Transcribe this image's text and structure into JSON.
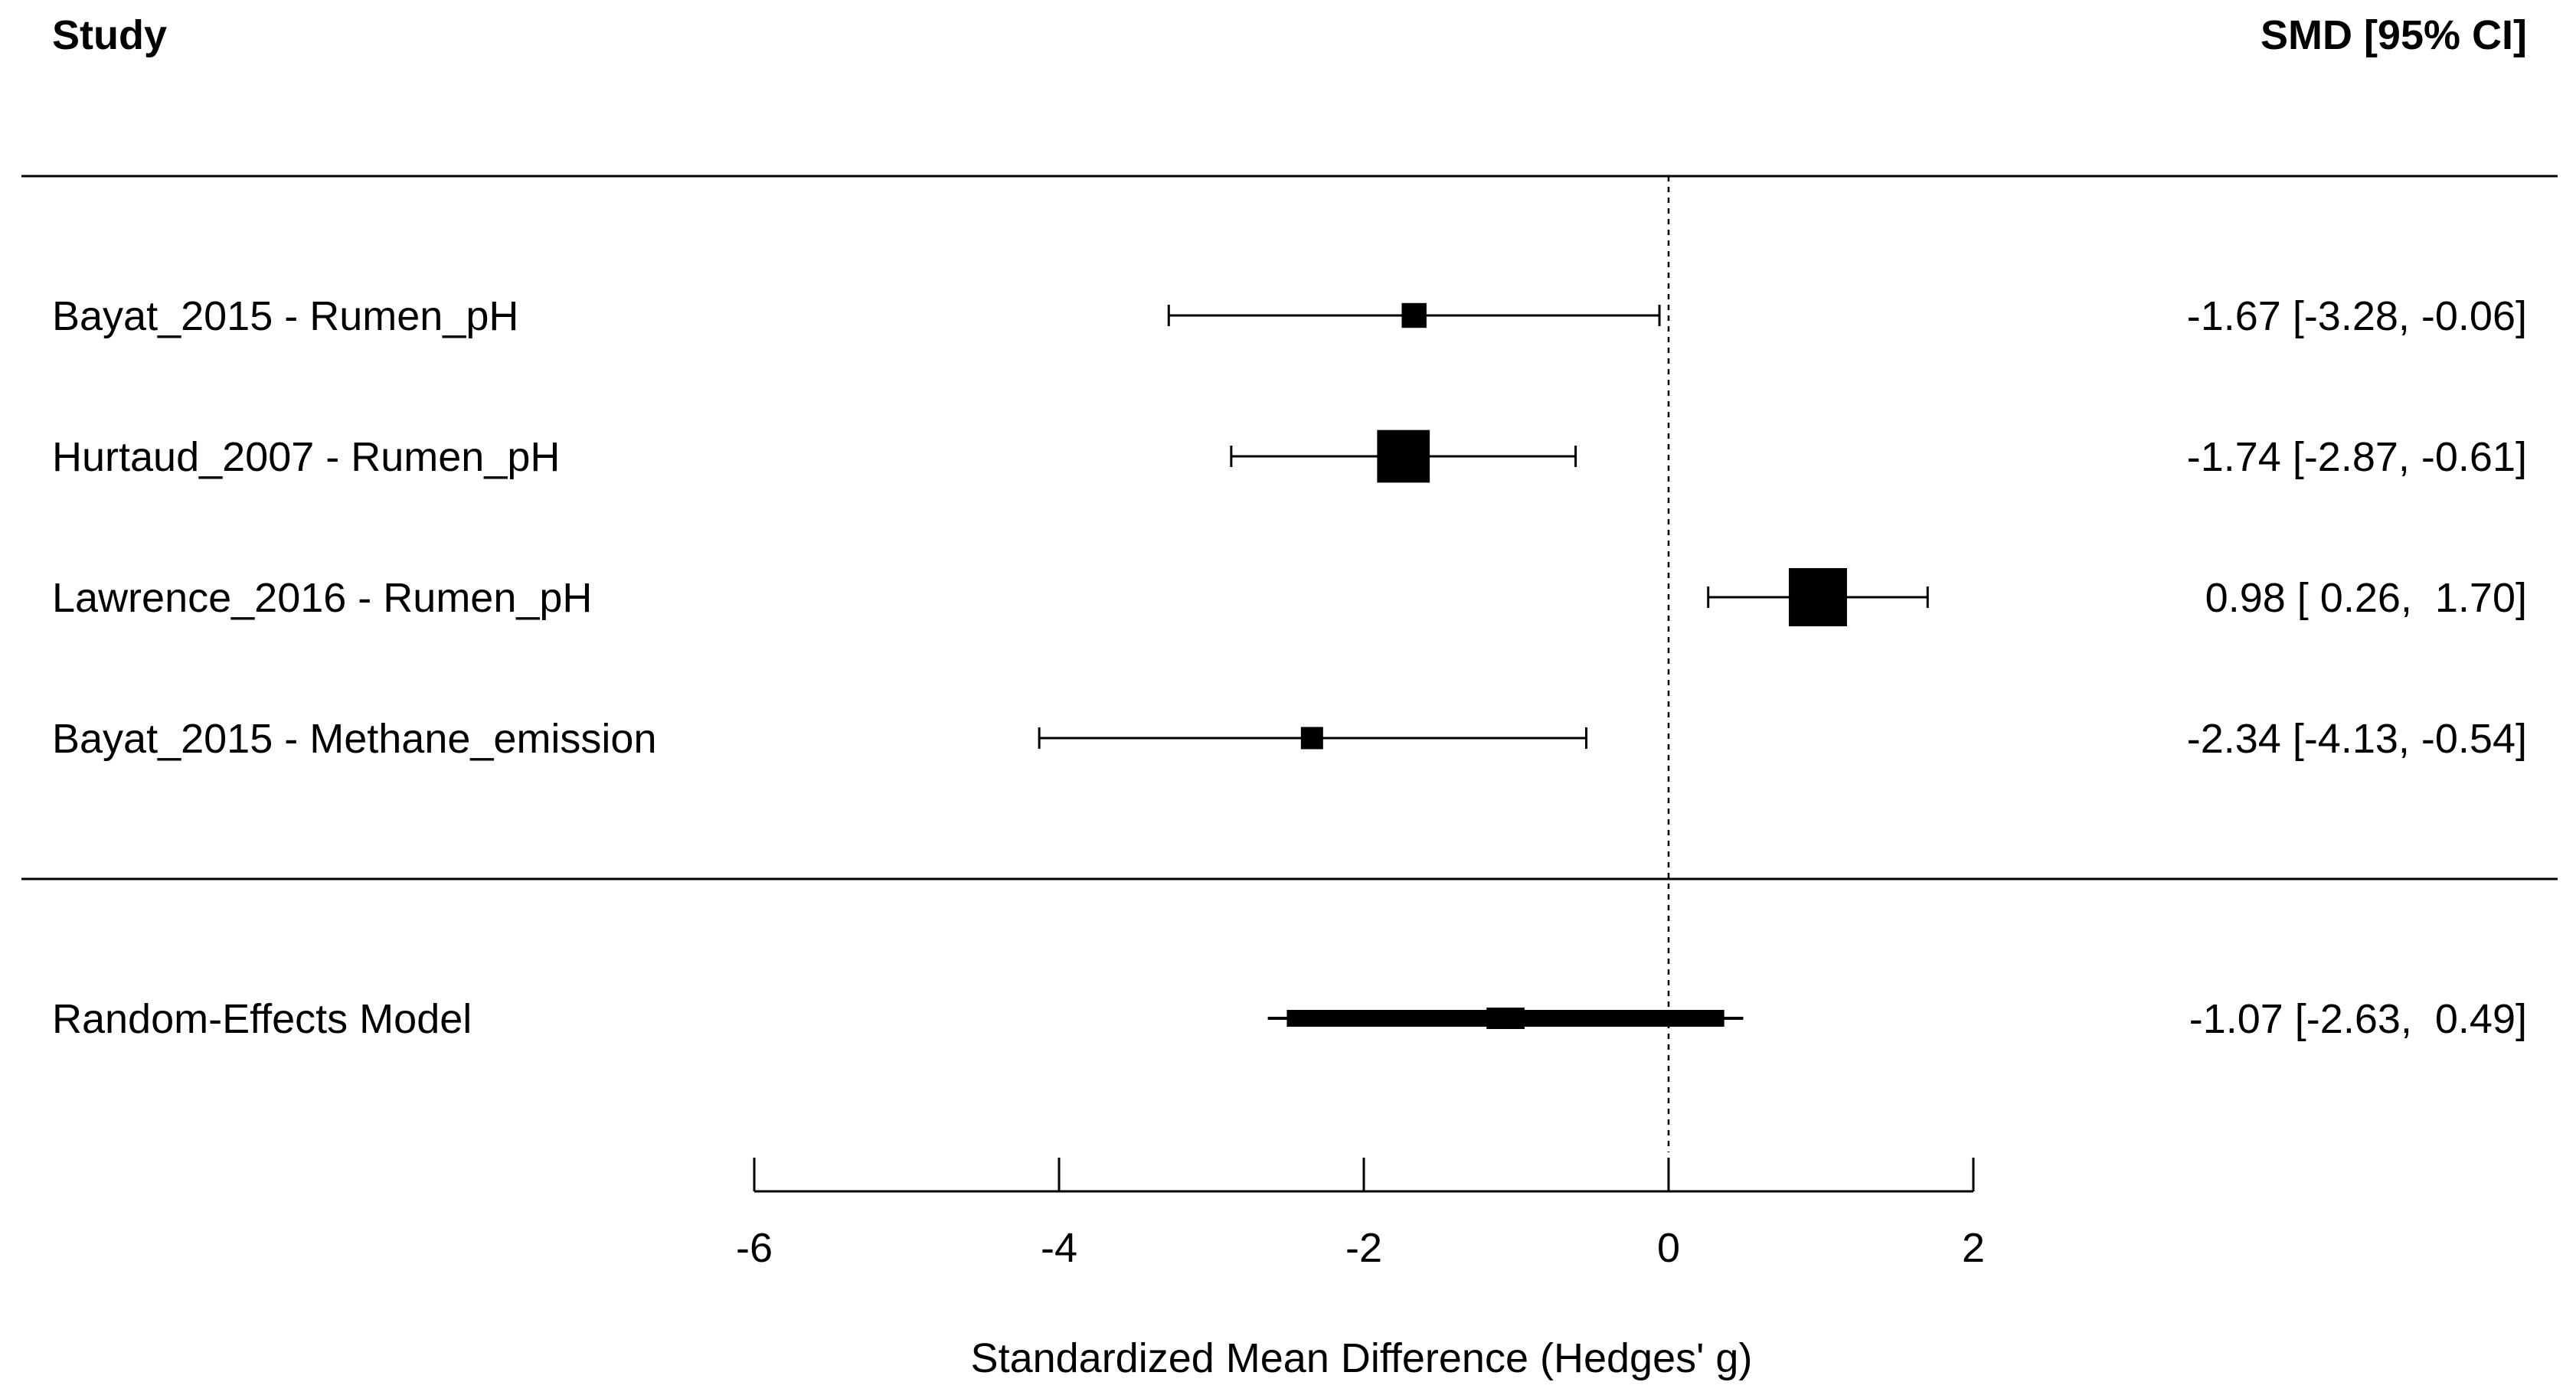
{
  "header": {
    "study_label": "Study",
    "ci_label": "SMD [95% CI]"
  },
  "chart_data": {
    "type": "forest",
    "xlabel": "Standardized Mean Difference (Hedges' g)",
    "xlim": [
      -6,
      2
    ],
    "xticks": [
      -6,
      -4,
      -2,
      0,
      2
    ],
    "reference_line": 0,
    "studies": [
      {
        "label": "Bayat_2015 - Rumen_pH",
        "estimate": -1.67,
        "lower": -3.28,
        "upper": -0.06,
        "ci_text": "-1.67 [-3.28, -0.06]",
        "weight": 1
      },
      {
        "label": "Hurtaud_2007 - Rumen_pH",
        "estimate": -1.74,
        "lower": -2.87,
        "upper": -0.61,
        "ci_text": "-1.74 [-2.87, -0.61]",
        "weight": 4.5
      },
      {
        "label": "Lawrence_2016 - Rumen_pH",
        "estimate": 0.98,
        "lower": 0.26,
        "upper": 1.7,
        "ci_text": "0.98 [ 0.26,  1.70]",
        "weight": 5.5
      },
      {
        "label": "Bayat_2015 - Methane_emission",
        "estimate": -2.34,
        "lower": -4.13,
        "upper": -0.54,
        "ci_text": "-2.34 [-4.13, -0.54]",
        "weight": 0.8
      }
    ],
    "summary": {
      "label": "Random-Effects Model",
      "estimate": -1.07,
      "lower": -2.63,
      "upper": 0.49,
      "ci_text": "-1.07 [-2.63,  0.49]"
    }
  }
}
